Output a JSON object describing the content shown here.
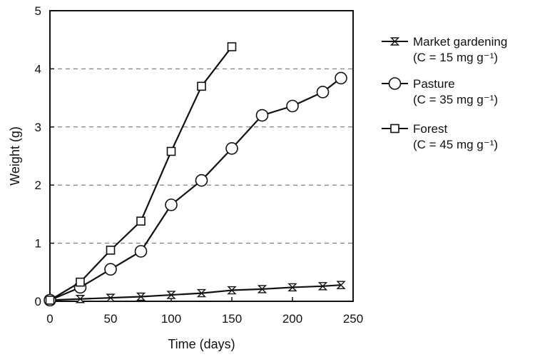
{
  "chart_data": {
    "type": "line",
    "xlabel": "Time (days)",
    "ylabel": "Weight (g)",
    "xlim": [
      0,
      250
    ],
    "ylim": [
      0,
      5
    ],
    "xticks": [
      "0",
      "50",
      "100",
      "150",
      "200",
      "250"
    ],
    "yticks": [
      "0",
      "1",
      "2",
      "3",
      "4",
      "5"
    ],
    "grid": "dashed horizontal",
    "legend_position": "right",
    "series": [
      {
        "name": "Market gardening",
        "note": "(C = 15 mg g⁻¹)",
        "marker": "hourglass",
        "x": [
          0,
          25,
          50,
          75,
          100,
          125,
          150,
          175,
          200,
          225,
          240
        ],
        "y": [
          0.02,
          0.04,
          0.06,
          0.08,
          0.11,
          0.14,
          0.19,
          0.21,
          0.24,
          0.26,
          0.28
        ]
      },
      {
        "name": "Pasture",
        "note": "(C = 35 mg g⁻¹)",
        "marker": "circle",
        "x": [
          0,
          25,
          50,
          75,
          100,
          125,
          150,
          175,
          200,
          225,
          240
        ],
        "y": [
          0.02,
          0.24,
          0.55,
          0.86,
          1.66,
          2.08,
          2.63,
          3.2,
          3.36,
          3.6,
          3.84
        ]
      },
      {
        "name": "Forest",
        "note": "(C = 45 mg g⁻¹)",
        "marker": "square",
        "x": [
          0,
          25,
          50,
          75,
          100,
          125,
          150
        ],
        "y": [
          0.02,
          0.33,
          0.88,
          1.38,
          2.58,
          3.7,
          4.38
        ]
      }
    ]
  }
}
